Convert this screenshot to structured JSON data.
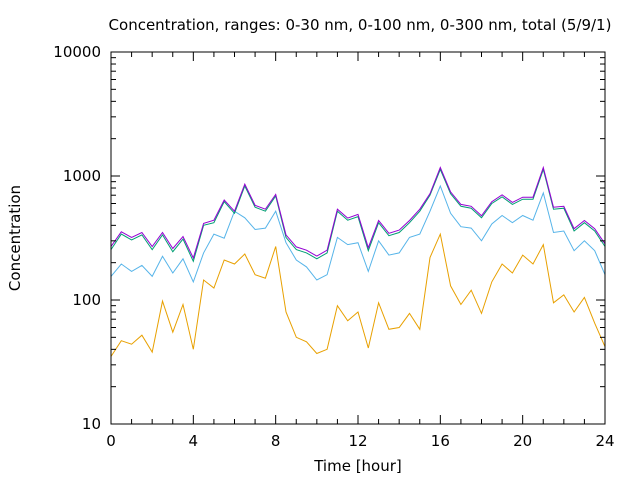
{
  "chart_data": {
    "type": "line",
    "title": "Concentration, ranges: 0-30 nm, 0-100 nm, 0-300 nm, total (5/9/1)",
    "xlabel": "Time [hour]",
    "ylabel": "Concentration",
    "xlim": [
      0,
      24
    ],
    "ylim": [
      10,
      10000
    ],
    "yscale": "log",
    "grid": false,
    "xticks": [
      0,
      4,
      8,
      12,
      16,
      20,
      24
    ],
    "xtick_labels": [
      "0",
      "4",
      "8",
      "12",
      "16",
      "20",
      "24"
    ],
    "yticks": [
      10,
      100,
      1000,
      10000
    ],
    "ytick_labels": [
      "10",
      "100",
      "1000",
      "10000"
    ],
    "x": [
      0,
      0.5,
      1,
      1.5,
      2,
      2.5,
      3,
      3.5,
      4,
      4.5,
      5,
      5.5,
      6,
      6.5,
      7,
      7.5,
      8,
      8.5,
      9,
      9.5,
      10,
      10.5,
      11,
      11.5,
      12,
      12.5,
      13,
      13.5,
      14,
      14.5,
      15,
      15.5,
      16,
      16.5,
      17,
      17.5,
      18,
      18.5,
      19,
      19.5,
      20,
      20.5,
      21,
      21.5,
      22,
      22.5,
      23,
      23.5,
      24
    ],
    "series": [
      {
        "color": "#e8a000",
        "values": [
          35,
          47,
          44,
          52,
          38,
          98,
          55,
          92,
          40,
          145,
          125,
          210,
          195,
          235,
          160,
          150,
          270,
          80,
          50,
          46,
          37,
          40,
          90,
          68,
          80,
          41,
          95,
          58,
          60,
          78,
          58,
          220,
          340,
          130,
          92,
          120,
          78,
          140,
          195,
          165,
          230,
          195,
          280,
          95,
          110,
          80,
          105,
          65,
          42
        ]
      },
      {
        "color": "#56b4e9",
        "values": [
          155,
          195,
          170,
          190,
          155,
          225,
          165,
          215,
          140,
          240,
          340,
          315,
          520,
          460,
          370,
          380,
          520,
          290,
          210,
          185,
          145,
          160,
          320,
          280,
          290,
          170,
          300,
          230,
          240,
          320,
          340,
          520,
          830,
          500,
          390,
          380,
          300,
          410,
          480,
          420,
          480,
          440,
          730,
          350,
          360,
          250,
          300,
          250,
          160
        ]
      },
      {
        "color": "#009e73",
        "values": [
          255,
          340,
          305,
          335,
          255,
          335,
          245,
          310,
          205,
          400,
          420,
          620,
          500,
          830,
          560,
          520,
          690,
          320,
          255,
          240,
          215,
          240,
          520,
          440,
          470,
          250,
          420,
          330,
          350,
          420,
          520,
          700,
          1130,
          720,
          570,
          550,
          460,
          600,
          680,
          590,
          650,
          650,
          1130,
          540,
          550,
          360,
          420,
          360,
          270
        ]
      },
      {
        "color": "#9400d3",
        "values": [
          270,
          355,
          320,
          350,
          270,
          350,
          260,
          325,
          218,
          415,
          440,
          640,
          520,
          860,
          580,
          540,
          710,
          335,
          268,
          252,
          226,
          252,
          540,
          458,
          490,
          264,
          438,
          345,
          366,
          438,
          540,
          720,
          1170,
          745,
          590,
          570,
          478,
          620,
          705,
          612,
          675,
          675,
          1170,
          560,
          570,
          376,
          438,
          376,
          284
        ]
      }
    ]
  }
}
